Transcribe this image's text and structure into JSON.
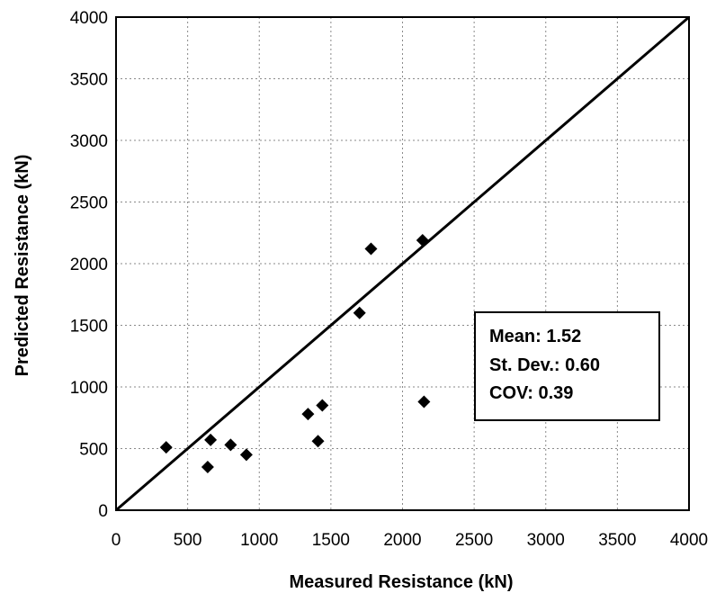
{
  "chart_data": {
    "type": "scatter",
    "title": "",
    "xlabel": "Measured Resistance (kN)",
    "ylabel": "Predicted Resistance (kN)",
    "xlim": [
      0,
      4000
    ],
    "ylim": [
      0,
      4000
    ],
    "x_ticks": [
      "0",
      "500",
      "1000",
      "1500",
      "2000",
      "2500",
      "3000",
      "3500",
      "4000"
    ],
    "y_ticks": [
      "0",
      "500",
      "1000",
      "1500",
      "2000",
      "2500",
      "3000",
      "3500",
      "4000"
    ],
    "grid": true,
    "marker": "diamond",
    "marker_color": "#000000",
    "reference_line": {
      "type": "y=x",
      "from": [
        0,
        0
      ],
      "to": [
        4000,
        4000
      ]
    },
    "series": [
      {
        "points": [
          {
            "x": 350,
            "y": 510
          },
          {
            "x": 640,
            "y": 350
          },
          {
            "x": 660,
            "y": 570
          },
          {
            "x": 800,
            "y": 530
          },
          {
            "x": 910,
            "y": 450
          },
          {
            "x": 1340,
            "y": 780
          },
          {
            "x": 1410,
            "y": 560
          },
          {
            "x": 1440,
            "y": 850
          },
          {
            "x": 1700,
            "y": 1600
          },
          {
            "x": 1780,
            "y": 2120
          },
          {
            "x": 2140,
            "y": 2190
          },
          {
            "x": 2150,
            "y": 880
          }
        ]
      }
    ],
    "annotation": {
      "lines": [
        "Mean:  1.52",
        "St. Dev.: 0.60",
        "COV:  0.39"
      ],
      "position": "right"
    }
  }
}
